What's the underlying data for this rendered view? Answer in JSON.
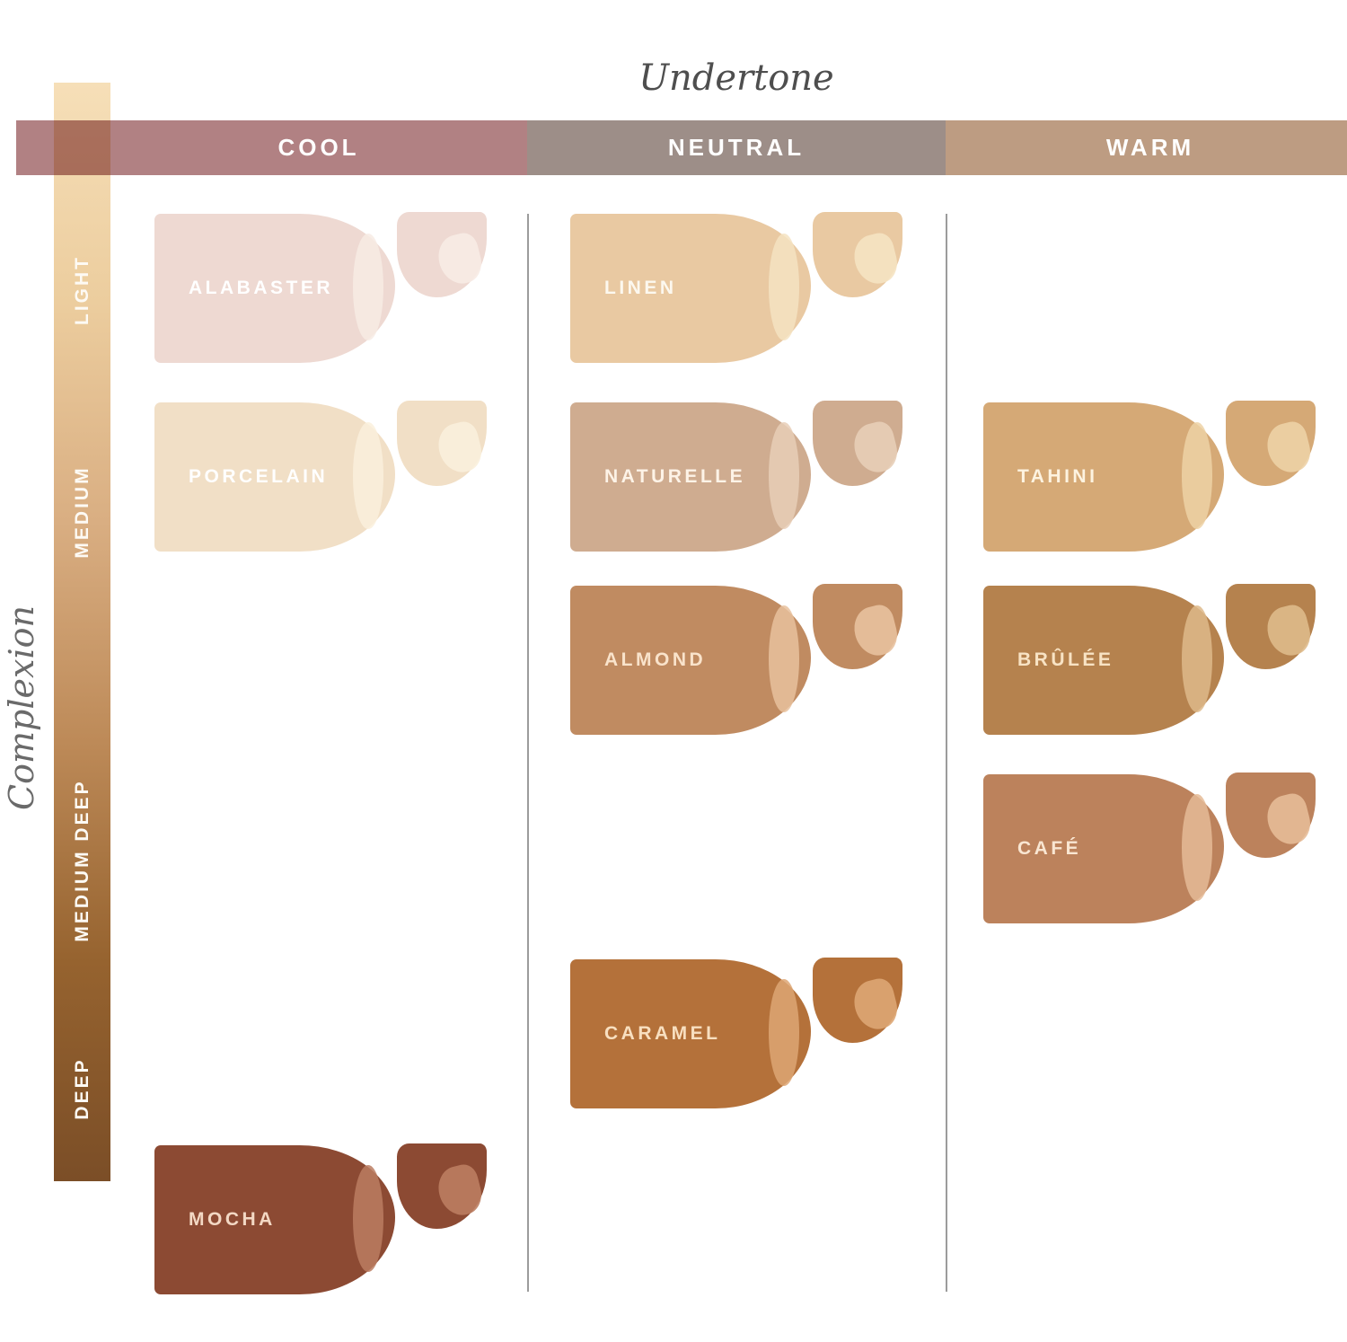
{
  "axes": {
    "undertone_title": "Undertone",
    "complexion_title": "Complexion",
    "undertone_categories": [
      {
        "label": "COOL",
        "color": "#b18183"
      },
      {
        "label": "NEUTRAL",
        "color": "#9d8e88"
      },
      {
        "label": "WARM",
        "color": "#bd9c82"
      }
    ],
    "complexion_labels": [
      "LIGHT",
      "MEDIUM",
      "MEDIUM DEEP",
      "DEEP"
    ],
    "complexion_gradient": [
      "#f6dfb8",
      "#eccd9e",
      "#d9ae82",
      "#bd8a58",
      "#96632f",
      "#7b4e27"
    ]
  },
  "swatches": [
    {
      "name": "ALABASTER",
      "undertone": "cool",
      "row": 1,
      "color": "#eed9d2",
      "highlight": "#f7ebe4",
      "label_color": "#ffffff"
    },
    {
      "name": "LINEN",
      "undertone": "neutral",
      "row": 1,
      "color": "#e9c9a2",
      "highlight": "#f5e3c2",
      "label_color": "#fcf8ef"
    },
    {
      "name": "PORCELAIN",
      "undertone": "cool",
      "row": 2,
      "color": "#f1dfc6",
      "highlight": "#faf0dc",
      "label_color": "#ffffff"
    },
    {
      "name": "NATURELLE",
      "undertone": "neutral",
      "row": 2,
      "color": "#cfac90",
      "highlight": "#e7ceb7",
      "label_color": "#fdf3e7"
    },
    {
      "name": "TAHINI",
      "undertone": "warm",
      "row": 2,
      "color": "#d5a976",
      "highlight": "#edd2a6",
      "label_color": "#fdf3e0"
    },
    {
      "name": "ALMOND",
      "undertone": "neutral",
      "row": 3,
      "color": "#c08b61",
      "highlight": "#e8c19e",
      "label_color": "#f9e3cb"
    },
    {
      "name": "BRÛLÉE",
      "undertone": "warm",
      "row": 3,
      "color": "#b5824e",
      "highlight": "#deba8b",
      "label_color": "#f8e3c4"
    },
    {
      "name": "CAFÉ",
      "undertone": "warm",
      "row": 4,
      "color": "#bc825c",
      "highlight": "#e5bb97",
      "label_color": "#f9e6d2"
    },
    {
      "name": "CARAMEL",
      "undertone": "neutral",
      "row": 5,
      "color": "#b4713a",
      "highlight": "#dda674",
      "label_color": "#f8dfc0"
    },
    {
      "name": "MOCHA",
      "undertone": "cool",
      "row": 6,
      "color": "#8c4a33",
      "highlight": "#bb7d61",
      "label_color": "#f3d8c4"
    }
  ],
  "chart_data": {
    "type": "heatmap",
    "xlabel": "Undertone",
    "ylabel": "Complexion",
    "x_categories": [
      "Cool",
      "Neutral",
      "Warm"
    ],
    "y_categories": [
      "Light",
      "Medium",
      "Medium Deep",
      "Deep"
    ],
    "legend_position": "none",
    "grid": false,
    "points": [
      {
        "shade": "Alabaster",
        "undertone": "Cool",
        "complexion": "Light",
        "color": "#eed9d2"
      },
      {
        "shade": "Linen",
        "undertone": "Neutral",
        "complexion": "Light",
        "color": "#e9c9a2"
      },
      {
        "shade": "Porcelain",
        "undertone": "Cool",
        "complexion": "Light-Medium",
        "color": "#f1dfc6"
      },
      {
        "shade": "Naturelle",
        "undertone": "Neutral",
        "complexion": "Light-Medium",
        "color": "#cfac90"
      },
      {
        "shade": "Tahini",
        "undertone": "Warm",
        "complexion": "Light-Medium",
        "color": "#d5a976"
      },
      {
        "shade": "Almond",
        "undertone": "Neutral",
        "complexion": "Medium",
        "color": "#c08b61"
      },
      {
        "shade": "Brûlée",
        "undertone": "Warm",
        "complexion": "Medium",
        "color": "#b5824e"
      },
      {
        "shade": "Café",
        "undertone": "Warm",
        "complexion": "Medium Deep",
        "color": "#bc825c"
      },
      {
        "shade": "Caramel",
        "undertone": "Neutral",
        "complexion": "Medium Deep-Deep",
        "color": "#b4713a"
      },
      {
        "shade": "Mocha",
        "undertone": "Cool",
        "complexion": "Deep",
        "color": "#8c4a33"
      }
    ]
  }
}
